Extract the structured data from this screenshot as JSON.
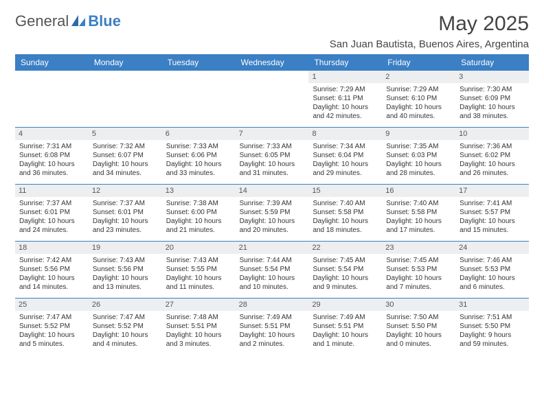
{
  "logo": {
    "text1": "General",
    "text2": "Blue"
  },
  "title": "May 2025",
  "location": "San Juan Bautista, Buenos Aires, Argentina",
  "colors": {
    "header_bg": "#3b7fc4",
    "daynum_bg": "#eceef0",
    "row_border": "#3b7fc4",
    "text": "#333333"
  },
  "weekdays": [
    "Sunday",
    "Monday",
    "Tuesday",
    "Wednesday",
    "Thursday",
    "Friday",
    "Saturday"
  ],
  "weeks": [
    [
      {
        "empty": true
      },
      {
        "empty": true
      },
      {
        "empty": true
      },
      {
        "empty": true
      },
      {
        "day": "1",
        "sunrise": "Sunrise: 7:29 AM",
        "sunset": "Sunset: 6:11 PM",
        "daylight1": "Daylight: 10 hours",
        "daylight2": "and 42 minutes."
      },
      {
        "day": "2",
        "sunrise": "Sunrise: 7:29 AM",
        "sunset": "Sunset: 6:10 PM",
        "daylight1": "Daylight: 10 hours",
        "daylight2": "and 40 minutes."
      },
      {
        "day": "3",
        "sunrise": "Sunrise: 7:30 AM",
        "sunset": "Sunset: 6:09 PM",
        "daylight1": "Daylight: 10 hours",
        "daylight2": "and 38 minutes."
      }
    ],
    [
      {
        "day": "4",
        "sunrise": "Sunrise: 7:31 AM",
        "sunset": "Sunset: 6:08 PM",
        "daylight1": "Daylight: 10 hours",
        "daylight2": "and 36 minutes."
      },
      {
        "day": "5",
        "sunrise": "Sunrise: 7:32 AM",
        "sunset": "Sunset: 6:07 PM",
        "daylight1": "Daylight: 10 hours",
        "daylight2": "and 34 minutes."
      },
      {
        "day": "6",
        "sunrise": "Sunrise: 7:33 AM",
        "sunset": "Sunset: 6:06 PM",
        "daylight1": "Daylight: 10 hours",
        "daylight2": "and 33 minutes."
      },
      {
        "day": "7",
        "sunrise": "Sunrise: 7:33 AM",
        "sunset": "Sunset: 6:05 PM",
        "daylight1": "Daylight: 10 hours",
        "daylight2": "and 31 minutes."
      },
      {
        "day": "8",
        "sunrise": "Sunrise: 7:34 AM",
        "sunset": "Sunset: 6:04 PM",
        "daylight1": "Daylight: 10 hours",
        "daylight2": "and 29 minutes."
      },
      {
        "day": "9",
        "sunrise": "Sunrise: 7:35 AM",
        "sunset": "Sunset: 6:03 PM",
        "daylight1": "Daylight: 10 hours",
        "daylight2": "and 28 minutes."
      },
      {
        "day": "10",
        "sunrise": "Sunrise: 7:36 AM",
        "sunset": "Sunset: 6:02 PM",
        "daylight1": "Daylight: 10 hours",
        "daylight2": "and 26 minutes."
      }
    ],
    [
      {
        "day": "11",
        "sunrise": "Sunrise: 7:37 AM",
        "sunset": "Sunset: 6:01 PM",
        "daylight1": "Daylight: 10 hours",
        "daylight2": "and 24 minutes."
      },
      {
        "day": "12",
        "sunrise": "Sunrise: 7:37 AM",
        "sunset": "Sunset: 6:01 PM",
        "daylight1": "Daylight: 10 hours",
        "daylight2": "and 23 minutes."
      },
      {
        "day": "13",
        "sunrise": "Sunrise: 7:38 AM",
        "sunset": "Sunset: 6:00 PM",
        "daylight1": "Daylight: 10 hours",
        "daylight2": "and 21 minutes."
      },
      {
        "day": "14",
        "sunrise": "Sunrise: 7:39 AM",
        "sunset": "Sunset: 5:59 PM",
        "daylight1": "Daylight: 10 hours",
        "daylight2": "and 20 minutes."
      },
      {
        "day": "15",
        "sunrise": "Sunrise: 7:40 AM",
        "sunset": "Sunset: 5:58 PM",
        "daylight1": "Daylight: 10 hours",
        "daylight2": "and 18 minutes."
      },
      {
        "day": "16",
        "sunrise": "Sunrise: 7:40 AM",
        "sunset": "Sunset: 5:58 PM",
        "daylight1": "Daylight: 10 hours",
        "daylight2": "and 17 minutes."
      },
      {
        "day": "17",
        "sunrise": "Sunrise: 7:41 AM",
        "sunset": "Sunset: 5:57 PM",
        "daylight1": "Daylight: 10 hours",
        "daylight2": "and 15 minutes."
      }
    ],
    [
      {
        "day": "18",
        "sunrise": "Sunrise: 7:42 AM",
        "sunset": "Sunset: 5:56 PM",
        "daylight1": "Daylight: 10 hours",
        "daylight2": "and 14 minutes."
      },
      {
        "day": "19",
        "sunrise": "Sunrise: 7:43 AM",
        "sunset": "Sunset: 5:56 PM",
        "daylight1": "Daylight: 10 hours",
        "daylight2": "and 13 minutes."
      },
      {
        "day": "20",
        "sunrise": "Sunrise: 7:43 AM",
        "sunset": "Sunset: 5:55 PM",
        "daylight1": "Daylight: 10 hours",
        "daylight2": "and 11 minutes."
      },
      {
        "day": "21",
        "sunrise": "Sunrise: 7:44 AM",
        "sunset": "Sunset: 5:54 PM",
        "daylight1": "Daylight: 10 hours",
        "daylight2": "and 10 minutes."
      },
      {
        "day": "22",
        "sunrise": "Sunrise: 7:45 AM",
        "sunset": "Sunset: 5:54 PM",
        "daylight1": "Daylight: 10 hours",
        "daylight2": "and 9 minutes."
      },
      {
        "day": "23",
        "sunrise": "Sunrise: 7:45 AM",
        "sunset": "Sunset: 5:53 PM",
        "daylight1": "Daylight: 10 hours",
        "daylight2": "and 7 minutes."
      },
      {
        "day": "24",
        "sunrise": "Sunrise: 7:46 AM",
        "sunset": "Sunset: 5:53 PM",
        "daylight1": "Daylight: 10 hours",
        "daylight2": "and 6 minutes."
      }
    ],
    [
      {
        "day": "25",
        "sunrise": "Sunrise: 7:47 AM",
        "sunset": "Sunset: 5:52 PM",
        "daylight1": "Daylight: 10 hours",
        "daylight2": "and 5 minutes."
      },
      {
        "day": "26",
        "sunrise": "Sunrise: 7:47 AM",
        "sunset": "Sunset: 5:52 PM",
        "daylight1": "Daylight: 10 hours",
        "daylight2": "and 4 minutes."
      },
      {
        "day": "27",
        "sunrise": "Sunrise: 7:48 AM",
        "sunset": "Sunset: 5:51 PM",
        "daylight1": "Daylight: 10 hours",
        "daylight2": "and 3 minutes."
      },
      {
        "day": "28",
        "sunrise": "Sunrise: 7:49 AM",
        "sunset": "Sunset: 5:51 PM",
        "daylight1": "Daylight: 10 hours",
        "daylight2": "and 2 minutes."
      },
      {
        "day": "29",
        "sunrise": "Sunrise: 7:49 AM",
        "sunset": "Sunset: 5:51 PM",
        "daylight1": "Daylight: 10 hours",
        "daylight2": "and 1 minute."
      },
      {
        "day": "30",
        "sunrise": "Sunrise: 7:50 AM",
        "sunset": "Sunset: 5:50 PM",
        "daylight1": "Daylight: 10 hours",
        "daylight2": "and 0 minutes."
      },
      {
        "day": "31",
        "sunrise": "Sunrise: 7:51 AM",
        "sunset": "Sunset: 5:50 PM",
        "daylight1": "Daylight: 9 hours",
        "daylight2": "and 59 minutes."
      }
    ]
  ]
}
